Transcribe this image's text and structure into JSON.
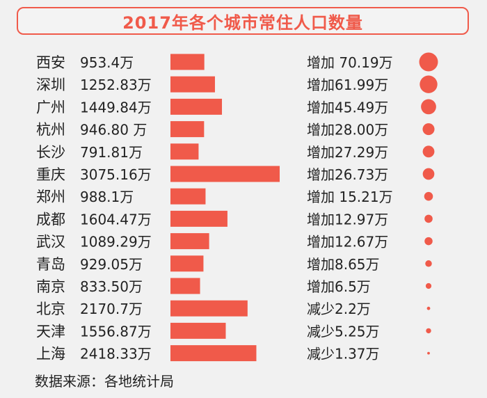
{
  "chart_data": {
    "type": "bar",
    "title": "2017年各个城市常住人口数量",
    "rows": [
      {
        "city": "西安",
        "pop_label": "953.4万",
        "pop": 953.4,
        "change_label": "增加 70.19万",
        "change": 70.19
      },
      {
        "city": "深圳",
        "pop_label": "1252.83万",
        "pop": 1252.83,
        "change_label": "增加61.99万",
        "change": 61.99
      },
      {
        "city": "广州",
        "pop_label": "1449.84万",
        "pop": 1449.84,
        "change_label": "增加45.49万",
        "change": 45.49
      },
      {
        "city": "杭州",
        "pop_label": "946.80 万",
        "pop": 946.8,
        "change_label": "增加28.00万",
        "change": 28.0
      },
      {
        "city": "长沙",
        "pop_label": "791.81万",
        "pop": 791.81,
        "change_label": "增加27.29万",
        "change": 27.29
      },
      {
        "city": "重庆",
        "pop_label": "3075.16万",
        "pop": 3075.16,
        "change_label": "增加26.73万",
        "change": 26.73
      },
      {
        "city": "郑州",
        "pop_label": "988.1万",
        "pop": 988.1,
        "change_label": "增加 15.21万",
        "change": 15.21
      },
      {
        "city": "成都",
        "pop_label": "1604.47万",
        "pop": 1604.47,
        "change_label": "增加12.97万",
        "change": 12.97
      },
      {
        "city": "武汉",
        "pop_label": "1089.29万",
        "pop": 1089.29,
        "change_label": "增加12.67万",
        "change": 12.67
      },
      {
        "city": "青岛",
        "pop_label": "929.05万",
        "pop": 929.05,
        "change_label": "增加8.65万",
        "change": 8.65
      },
      {
        "city": "南京",
        "pop_label": "833.50万",
        "pop": 833.5,
        "change_label": "增加6.5万",
        "change": 6.5
      },
      {
        "city": "北京",
        "pop_label": "2170.7万",
        "pop": 2170.7,
        "change_label": "减少2.2万",
        "change": -2.2
      },
      {
        "city": "天津",
        "pop_label": "1556.87万",
        "pop": 1556.87,
        "change_label": "减少5.25万",
        "change": -5.25
      },
      {
        "city": "上海",
        "pop_label": "2418.33万",
        "pop": 2418.33,
        "change_label": "减少1.37万",
        "change": -1.37
      }
    ],
    "bar_color": "#f05a4a",
    "dot_color": "#f05a4a"
  },
  "footer": {
    "source": "数据来源：各地统计局"
  }
}
